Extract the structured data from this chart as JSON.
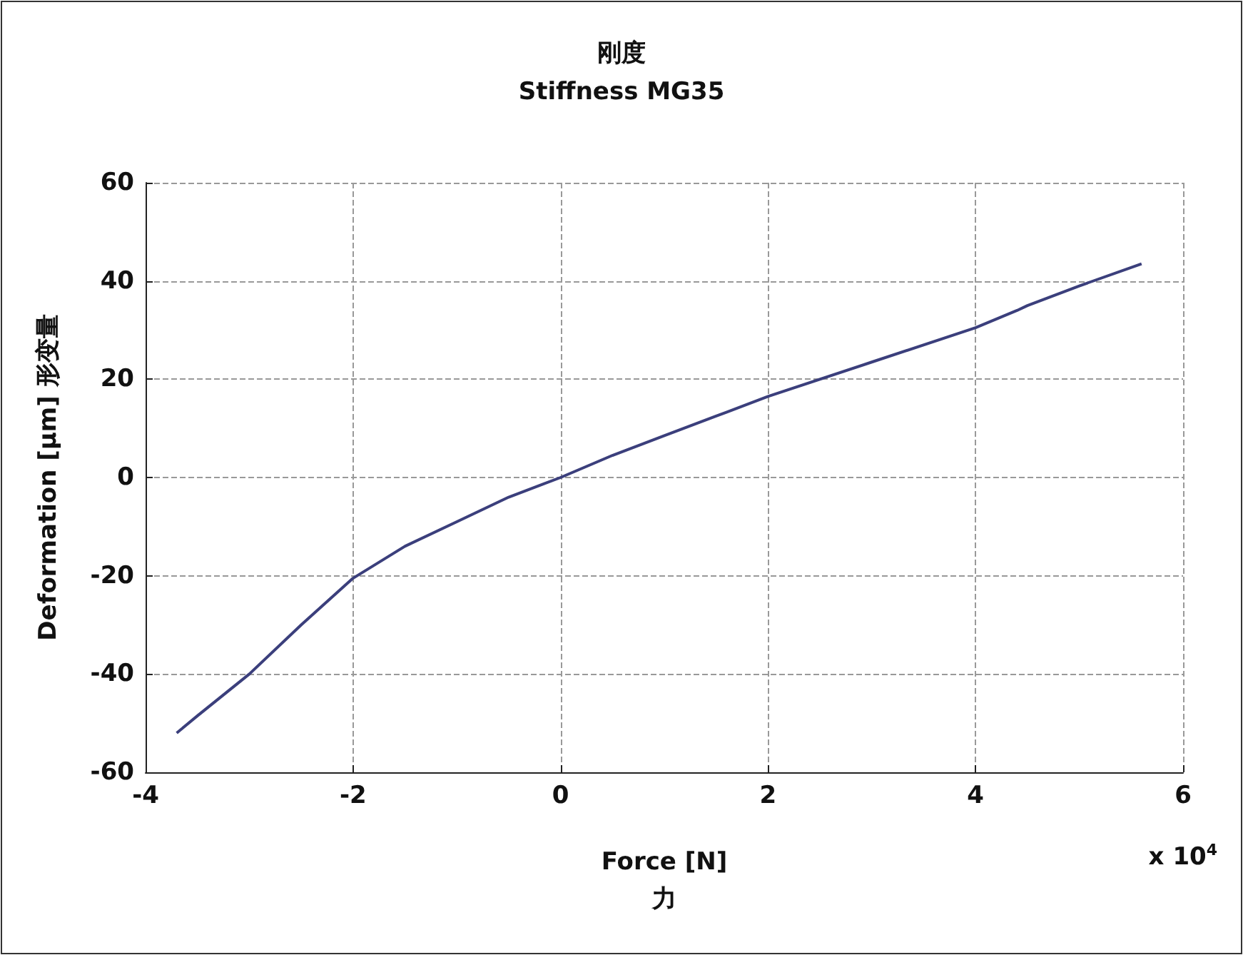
{
  "chart_data": {
    "type": "line",
    "title": "刚度",
    "subtitle": "Stiffness MG35",
    "xlabel": "Force [N]\n力",
    "ylabel": "Deformation [µm] 形变量",
    "annotations": [
      "x 10$^{4}$"
    ],
    "x": [
      -3.7,
      -3.5,
      -3,
      -2.5,
      -2,
      -1.5,
      -1,
      -0.5,
      0,
      0.5,
      1,
      1.5,
      2,
      3,
      4,
      4.4,
      4.5,
      5,
      5.6
    ],
    "series": [
      {
        "color": "#3b3f7c",
        "values": [
          -52,
          -48.5,
          -40,
          -30,
          -20.5,
          -14,
          -9,
          -4,
          0,
          4.5,
          8.5,
          12.5,
          16.5,
          23.5,
          30.5,
          34,
          35,
          39,
          43.5
        ]
      }
    ],
    "xlim": [
      -4,
      6
    ],
    "xticks": [
      -4,
      -2,
      0,
      2,
      4,
      6
    ],
    "ylim": [
      -60,
      60
    ],
    "yticks": [
      -60,
      -40,
      -20,
      0,
      20,
      40,
      60
    ],
    "grid": true,
    "marker": "none",
    "line_style": "solid"
  }
}
